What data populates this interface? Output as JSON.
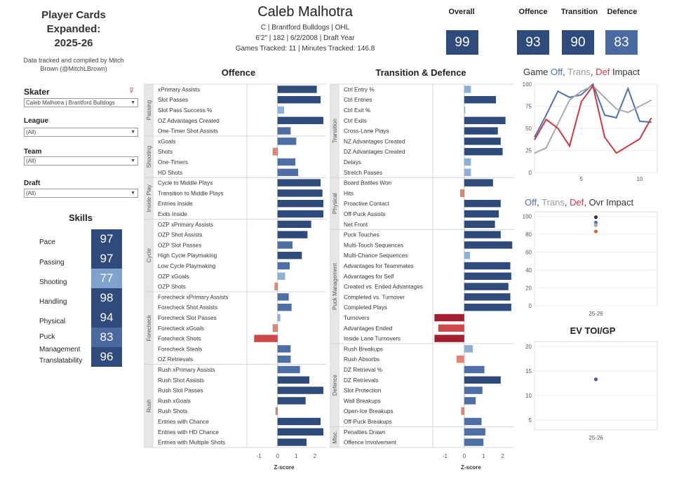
{
  "header": {
    "title_lines": [
      "Player Cards",
      "Expanded:",
      "2025-26"
    ],
    "credit": "Data tracked and compiled by Mitch Brown (@MitchLBrown)"
  },
  "player": {
    "name": "Caleb Malhotra",
    "line1": "C | Brantford Bulldogs | OHL",
    "line2": "6'2\" | 182 | 6/2/2008 | Draft Year",
    "line3": "Games Tracked: 11 | Minutes Tracked: 146.8"
  },
  "kpis": [
    {
      "label": "Overall",
      "value": "99"
    },
    {
      "label": "Offence",
      "value": "93"
    },
    {
      "label": "Transition",
      "value": "90"
    },
    {
      "label": "Defence",
      "value": "83"
    }
  ],
  "filters": {
    "skater": {
      "label": "Skater",
      "value": "Caleb Malhotra | Brantford Bulldogs"
    },
    "league": {
      "label": "League",
      "value": "(All)"
    },
    "team": {
      "label": "Team",
      "value": "(All)"
    },
    "draft": {
      "label": "Draft",
      "value": "(All)"
    }
  },
  "skills": {
    "title": "Skills",
    "items": [
      {
        "label": "Pace",
        "value": "97"
      },
      {
        "label": "Passing",
        "value": "97"
      },
      {
        "label": "Shooting",
        "value": "77"
      },
      {
        "label": "Handling",
        "value": "98"
      },
      {
        "label": "Physical",
        "value": "94"
      },
      {
        "label": "Puck Management",
        "value": "83"
      },
      {
        "label": "Translatability",
        "value": "96"
      }
    ]
  },
  "colors": {
    "navy": "#2f4b7c",
    "mid_blue": "#4a6a9f",
    "light_blue": "#7fa3cc",
    "red": "#c9393f",
    "dark_red": "#a31f2f",
    "salmon": "#e27a6a",
    "gray": "#aaaaaa",
    "orange": "#d9622b"
  },
  "chart_data": [
    {
      "type": "bar",
      "title": "Offence",
      "xlabel": "Z-score",
      "xlim": [
        -1.6,
        2.6
      ],
      "ticks": [
        "-1",
        "0",
        "1",
        "2"
      ],
      "groups": [
        {
          "name": "Passing",
          "metrics": [
            {
              "label": "xPrimary Assists",
              "value": 2.1
            },
            {
              "label": "Slot Passes",
              "value": 2.3
            },
            {
              "label": "Slot Pass Success %",
              "value": 0.35
            },
            {
              "label": "OZ Advantages Created",
              "value": 2.45
            },
            {
              "label": "One-Timer Shot Assists",
              "value": 0.7
            }
          ]
        },
        {
          "name": "Shooting",
          "metrics": [
            {
              "label": "xGoals",
              "value": 1.0
            },
            {
              "label": "Shots",
              "value": -0.25
            },
            {
              "label": "One-Timers",
              "value": 0.95
            },
            {
              "label": "HD Shots",
              "value": 1.1
            }
          ]
        },
        {
          "name": "Inside Play",
          "metrics": [
            {
              "label": "Cycle to Middle Plays",
              "value": 2.3
            },
            {
              "label": "Transition to Middle Plays",
              "value": 2.4
            },
            {
              "label": "Entries Inside",
              "value": 2.45
            },
            {
              "label": "Exits Inside",
              "value": 2.45
            }
          ]
        },
        {
          "name": "Cycle",
          "metrics": [
            {
              "label": "OZP xPrimary Assists",
              "value": 1.8
            },
            {
              "label": "OZP Shot Assists",
              "value": 1.6
            },
            {
              "label": "OZP Slot Passes",
              "value": 0.8
            },
            {
              "label": "High Cycle Playmaking",
              "value": 1.3
            },
            {
              "label": "Low Cycle Playmaking",
              "value": 0.65
            },
            {
              "label": "OZP xGoals",
              "value": 0.4
            },
            {
              "label": "OZP Shots",
              "value": -0.15
            }
          ]
        },
        {
          "name": "Forecheck",
          "metrics": [
            {
              "label": "Forecheck xPrimary Assists",
              "value": 0.6
            },
            {
              "label": "Forecheck Shot Assists",
              "value": 0.75
            },
            {
              "label": "Forecheck Slot Passes",
              "value": 0.15
            },
            {
              "label": "Forecheck xGoals",
              "value": -0.25
            },
            {
              "label": "Forecheck Shots",
              "value": -1.25
            },
            {
              "label": "Forecheck Steals",
              "value": 0.7
            },
            {
              "label": "OZ Retrievals",
              "value": 0.7
            }
          ]
        },
        {
          "name": "Rush",
          "metrics": [
            {
              "label": "Rush xPrimary Assists",
              "value": 1.2
            },
            {
              "label": "Rush Shot Assists",
              "value": 1.7
            },
            {
              "label": "Rush Slot Passes",
              "value": 2.45
            },
            {
              "label": "Rush xGoals",
              "value": 1.5
            },
            {
              "label": "Rush Shots",
              "value": -0.1
            },
            {
              "label": "Entries with Chance",
              "value": 2.3
            },
            {
              "label": "Entries with HD Chance",
              "value": 2.45
            },
            {
              "label": "Entries with Multiple Shots",
              "value": 1.55
            }
          ]
        }
      ]
    },
    {
      "type": "bar",
      "title": "Transition & Defence",
      "xlabel": "Z-score",
      "xlim": [
        -1.6,
        2.6
      ],
      "ticks": [
        "-1",
        "0",
        "1",
        "2"
      ],
      "groups": [
        {
          "name": "Transition",
          "metrics": [
            {
              "label": "Ctrl Entry %",
              "value": 0.35
            },
            {
              "label": "Ctrl Entries",
              "value": 1.65
            },
            {
              "label": "Ctrl Exit %",
              "value": 0.05
            },
            {
              "label": "Ctrl Exits",
              "value": 2.15
            },
            {
              "label": "Cross-Lane Plays",
              "value": 1.75
            },
            {
              "label": "NZ Advantages Created",
              "value": 1.9
            },
            {
              "label": "DZ Advantages Created",
              "value": 2.0
            },
            {
              "label": "Delays",
              "value": 0.35
            },
            {
              "label": "Stretch Passes",
              "value": 0.35
            }
          ]
        },
        {
          "name": "Physical",
          "metrics": [
            {
              "label": "Board Battles Won",
              "value": 1.5
            },
            {
              "label": "Hits",
              "value": -0.2
            },
            {
              "label": "Proactive Contact",
              "value": 1.9
            },
            {
              "label": "Off-Puck Assists",
              "value": 1.8
            },
            {
              "label": "Net Front",
              "value": 1.6
            }
          ]
        },
        {
          "name": "Puck Management",
          "metrics": [
            {
              "label": "Puck Touches",
              "value": 1.9
            },
            {
              "label": "Multi-Touch Sequences",
              "value": 2.5
            },
            {
              "label": "Multi-Chance Sequences",
              "value": 0.3
            },
            {
              "label": "Advantages for Teammates",
              "value": 2.4
            },
            {
              "label": "Advantages for Self",
              "value": 2.45
            },
            {
              "label": "Created vs. Ended Advantages",
              "value": 2.3
            },
            {
              "label": "Completed vs. Turnover",
              "value": 2.4
            },
            {
              "label": "Completed Plays",
              "value": 2.45
            },
            {
              "label": "Turnovers",
              "value": -1.55
            },
            {
              "label": "Advantages Ended",
              "value": -1.35
            },
            {
              "label": "Inside Lane Turnovers",
              "value": -1.55
            }
          ]
        },
        {
          "name": "Defence",
          "metrics": [
            {
              "label": "Rush Breakups",
              "value": 0.45
            },
            {
              "label": "Rush Absorbs",
              "value": -0.4
            },
            {
              "label": "DZ Retrieval %",
              "value": 1.05
            },
            {
              "label": "DZ Retrievals",
              "value": 1.9
            },
            {
              "label": "Slot Protection",
              "value": 0.95
            },
            {
              "label": "Wall Breakups",
              "value": 0.6
            },
            {
              "label": "Open-Ice Breakups",
              "value": -0.15
            },
            {
              "label": "Off-Puck Breakups",
              "value": 0.9
            }
          ]
        },
        {
          "name": "Misc.",
          "metrics": [
            {
              "label": "Penalties Drawn",
              "value": 1.1
            },
            {
              "label": "Offence Involvement",
              "value": 1.0
            }
          ]
        }
      ]
    },
    {
      "type": "line",
      "title_parts": [
        {
          "text": "Game ",
          "color": "#333333"
        },
        {
          "text": "Off",
          "color": "#4a72b0"
        },
        {
          "text": ", ",
          "color": "#333333"
        },
        {
          "text": "Trans",
          "color": "#999999"
        },
        {
          "text": ", ",
          "color": "#333333"
        },
        {
          "text": "Def",
          "color": "#d0393f"
        },
        {
          "text": " Impact",
          "color": "#333333"
        }
      ],
      "ylim": [
        0,
        100
      ],
      "yticks": [
        "0",
        "25",
        "50",
        "75",
        "100"
      ],
      "xlim": [
        1,
        11.5
      ],
      "xticks": [
        "5",
        "10"
      ],
      "x": [
        1,
        2,
        3,
        4,
        5,
        6,
        7,
        8,
        9,
        10,
        11
      ],
      "series": [
        {
          "name": "Off",
          "color": "#4a72b0",
          "values": [
            40,
            65,
            92,
            85,
            88,
            100,
            65,
            62,
            95,
            58,
            57
          ]
        },
        {
          "name": "Trans",
          "color": "#aaaaaa",
          "values": [
            22,
            28,
            55,
            82,
            92,
            98,
            85,
            72,
            68,
            75,
            82
          ]
        },
        {
          "name": "Def",
          "color": "#d0393f",
          "values": [
            37,
            60,
            50,
            30,
            80,
            98,
            40,
            22,
            30,
            38,
            62
          ]
        }
      ]
    },
    {
      "type": "scatter",
      "title_parts": [
        {
          "text": "Off",
          "color": "#4a72b0"
        },
        {
          "text": ", ",
          "color": "#333333"
        },
        {
          "text": "Trans",
          "color": "#999999"
        },
        {
          "text": ", ",
          "color": "#333333"
        },
        {
          "text": "Def",
          "color": "#d0393f"
        },
        {
          "text": ", Ovr Impact",
          "color": "#333333"
        }
      ],
      "ylim": [
        0,
        105
      ],
      "yticks": [
        "0",
        "20",
        "40",
        "60",
        "80",
        "100"
      ],
      "categories": [
        "25-26"
      ],
      "points": [
        {
          "name": "Ovr",
          "color": "#333333",
          "value": 99
        },
        {
          "name": "Off",
          "color": "#4a72b0",
          "value": 93
        },
        {
          "name": "Trans",
          "color": "#aaaaaa",
          "value": 90
        },
        {
          "name": "Def",
          "color": "#d9622b",
          "value": 83
        }
      ]
    },
    {
      "type": "scatter",
      "title": "EV TOI/GP",
      "ylim": [
        3,
        21
      ],
      "yticks": [
        "5",
        "10",
        "15",
        "20"
      ],
      "categories": [
        "25-26"
      ],
      "points": [
        {
          "name": "EV TOI/GP",
          "color": "#4a5f9a",
          "value": 13.3
        }
      ]
    }
  ]
}
